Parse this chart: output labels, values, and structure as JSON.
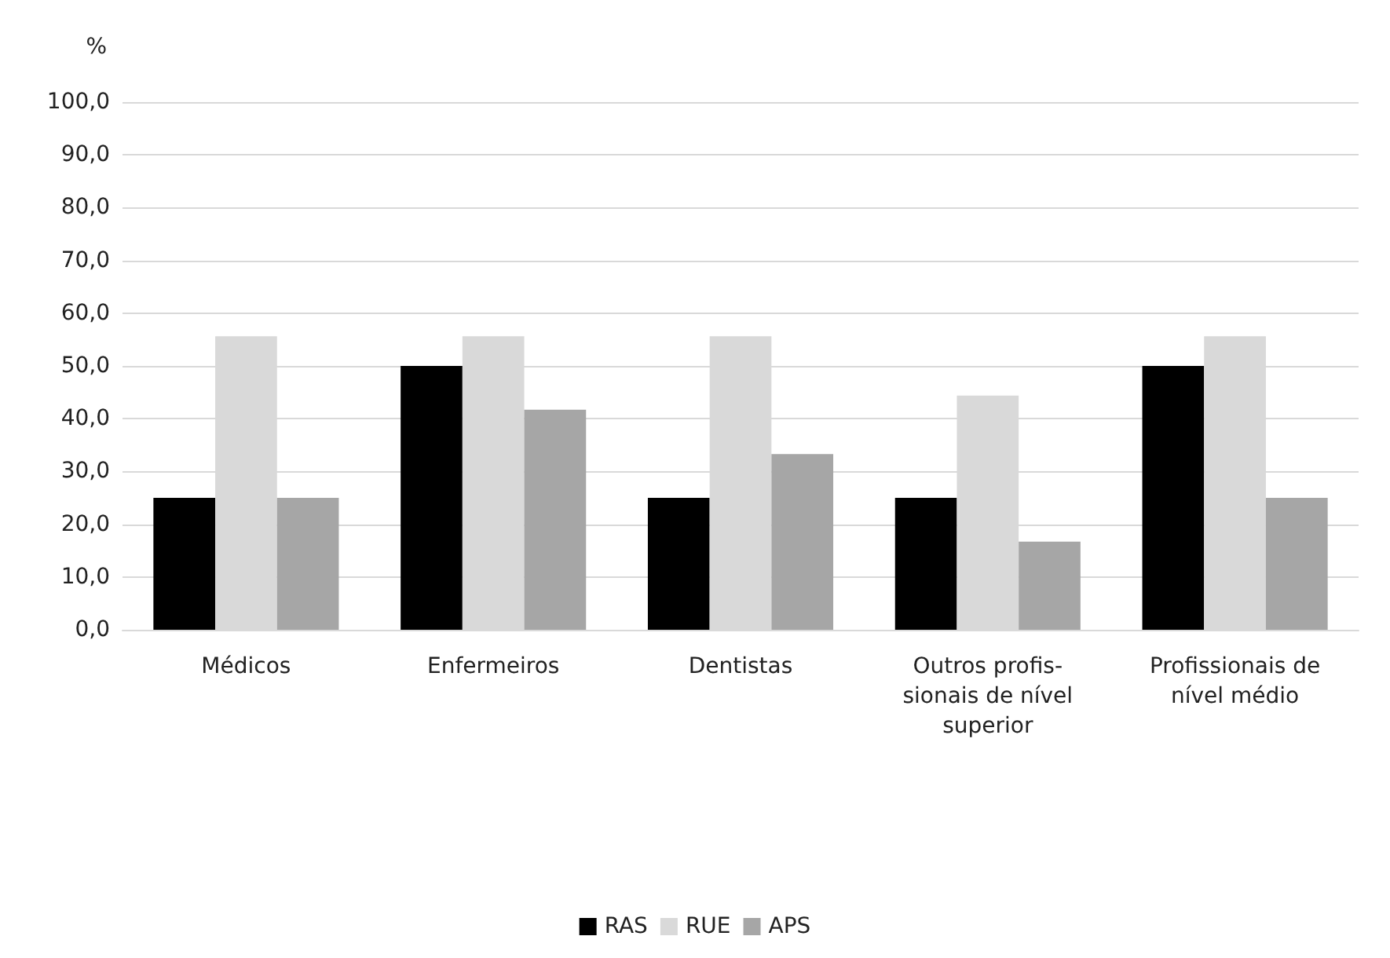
{
  "chart_data": {
    "type": "bar",
    "ylabel": "%",
    "categories": [
      "Médicos",
      "Enfermeiros",
      "Dentistas",
      "Outros profis-\nsionais de nível\nsuperior",
      "Profissionais de\nnível médio"
    ],
    "series": [
      {
        "name": "RAS",
        "color": "#000000",
        "values": [
          25,
          50,
          25,
          25,
          50
        ]
      },
      {
        "name": "RUE",
        "color": "#d9d9d9",
        "values": [
          55.6,
          55.6,
          55.6,
          44.4,
          55.6
        ]
      },
      {
        "name": "APS",
        "color": "#a6a6a6",
        "values": [
          25,
          41.7,
          33.3,
          16.7,
          25
        ]
      }
    ],
    "ylim": [
      0,
      100
    ],
    "yticks": [
      {
        "value": 0,
        "label": "0,0"
      },
      {
        "value": 10,
        "label": "10,0"
      },
      {
        "value": 20,
        "label": "20,0"
      },
      {
        "value": 30,
        "label": "30,0"
      },
      {
        "value": 40,
        "label": "40,0"
      },
      {
        "value": 50,
        "label": "50,0"
      },
      {
        "value": 60,
        "label": "60,0"
      },
      {
        "value": 70,
        "label": "70,0"
      },
      {
        "value": 80,
        "label": "80,0"
      },
      {
        "value": 90,
        "label": "90,0"
      },
      {
        "value": 100,
        "label": "100,0"
      }
    ],
    "grid": "y",
    "legend": "bottom"
  }
}
